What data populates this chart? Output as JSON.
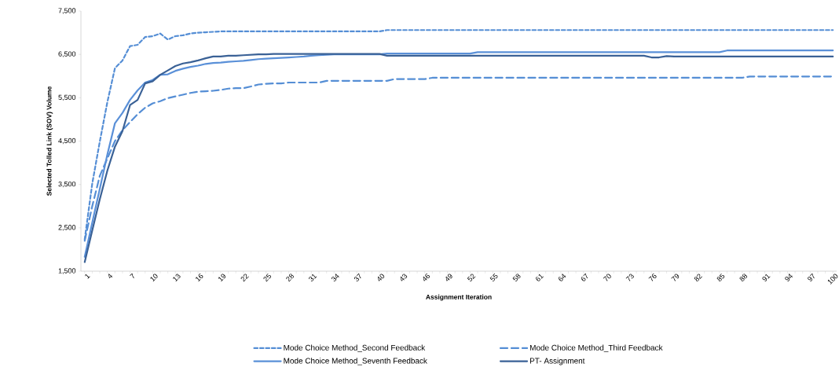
{
  "chart_data": {
    "type": "line",
    "xlabel": "Assignment Iteration",
    "ylabel": "Selected Tolled Link (SOV) Volume",
    "categories": [
      "1",
      null,
      null,
      "4",
      null,
      null,
      "7",
      null,
      null,
      "10",
      null,
      null,
      "13",
      null,
      null,
      "16",
      null,
      null,
      "19",
      null,
      null,
      "22",
      null,
      null,
      "25",
      null,
      null,
      "28",
      null,
      null,
      "31",
      null,
      null,
      "34",
      null,
      null,
      "37",
      null,
      null,
      "40",
      null,
      null,
      "43",
      null,
      null,
      "46",
      null,
      null,
      "49",
      null,
      null,
      "52",
      null,
      null,
      "55",
      null,
      null,
      "58",
      null,
      null,
      "61",
      null,
      null,
      "64",
      null,
      null,
      "67",
      null,
      null,
      "70",
      null,
      null,
      "73",
      null,
      null,
      "76",
      null,
      null,
      "79",
      null,
      null,
      "82",
      null,
      null,
      "85",
      null,
      null,
      "88",
      null,
      null,
      "91",
      null,
      null,
      "94",
      null,
      null,
      "97",
      null,
      null,
      "100"
    ],
    "ylim": [
      1500,
      7500
    ],
    "yticks": [
      {
        "value": 1500,
        "label": "1,500"
      },
      {
        "value": 2500,
        "label": "2,500"
      },
      {
        "value": 3500,
        "label": "3,500"
      },
      {
        "value": 4500,
        "label": "4,500"
      },
      {
        "value": 5500,
        "label": "5,500"
      },
      {
        "value": 6500,
        "label": "6,500"
      },
      {
        "value": 7500,
        "label": "7,500"
      }
    ],
    "legend": "bottom",
    "series": [
      {
        "name": "Mode Choice Method_Second Feedback",
        "color": "#558ed5",
        "line_style": "dotted",
        "values": [
          2230,
          3520,
          4490,
          5400,
          6180,
          6360,
          6690,
          6720,
          6900,
          6920,
          6980,
          6840,
          6920,
          6940,
          6980,
          7000,
          7010,
          7020,
          7030,
          7030,
          7030,
          7030,
          7030,
          7030,
          7030,
          7030,
          7030,
          7030,
          7030,
          7030,
          7030,
          7030,
          7030,
          7030,
          7030,
          7030,
          7030,
          7030,
          7030,
          7030,
          7060,
          7060,
          7060,
          7060,
          7060,
          7060,
          7060,
          7060,
          7060,
          7060,
          7060,
          7060,
          7060,
          7060,
          7060,
          7060,
          7060,
          7060,
          7060,
          7060,
          7060,
          7060,
          7060,
          7060,
          7060,
          7060,
          7060,
          7060,
          7060,
          7060,
          7060,
          7060,
          7060,
          7060,
          7060,
          7060,
          7060,
          7060,
          7060,
          7060,
          7060,
          7060,
          7060,
          7060,
          7060,
          7060,
          7060,
          7060,
          7060,
          7060,
          7060,
          7060,
          7060,
          7060,
          7060,
          7060,
          7060,
          7060,
          7060,
          7060
        ]
      },
      {
        "name": "Mode Choice Method_Third Feedback",
        "color": "#558ed5",
        "line_style": "dashed",
        "values": [
          2200,
          3000,
          3700,
          4100,
          4500,
          4750,
          4940,
          5120,
          5270,
          5370,
          5420,
          5490,
          5530,
          5570,
          5610,
          5640,
          5650,
          5660,
          5680,
          5710,
          5720,
          5720,
          5760,
          5805,
          5820,
          5830,
          5830,
          5850,
          5850,
          5850,
          5850,
          5850,
          5890,
          5890,
          5890,
          5890,
          5890,
          5890,
          5890,
          5890,
          5890,
          5930,
          5930,
          5930,
          5930,
          5930,
          5960,
          5960,
          5960,
          5960,
          5960,
          5960,
          5960,
          5960,
          5960,
          5960,
          5960,
          5960,
          5960,
          5960,
          5960,
          5960,
          5960,
          5960,
          5960,
          5960,
          5960,
          5960,
          5960,
          5960,
          5960,
          5960,
          5960,
          5960,
          5960,
          5960,
          5960,
          5960,
          5960,
          5960,
          5960,
          5960,
          5960,
          5960,
          5960,
          5960,
          5960,
          5960,
          5990,
          5990,
          5990,
          5990,
          5990,
          5990,
          5990,
          5990,
          5990,
          5990,
          5990,
          5990
        ]
      },
      {
        "name": "Mode Choice Method_Seventh Feedback",
        "color": "#5a90d8",
        "line_style": "solid",
        "values": [
          1830,
          2620,
          3400,
          4190,
          4910,
          5150,
          5450,
          5670,
          5850,
          5910,
          6030,
          6040,
          6120,
          6170,
          6210,
          6240,
          6280,
          6300,
          6310,
          6330,
          6340,
          6350,
          6370,
          6390,
          6400,
          6410,
          6420,
          6430,
          6440,
          6450,
          6470,
          6480,
          6490,
          6500,
          6500,
          6500,
          6500,
          6500,
          6500,
          6500,
          6520,
          6520,
          6520,
          6520,
          6520,
          6520,
          6520,
          6520,
          6520,
          6520,
          6520,
          6520,
          6550,
          6550,
          6550,
          6550,
          6550,
          6550,
          6550,
          6550,
          6550,
          6550,
          6550,
          6550,
          6550,
          6550,
          6550,
          6550,
          6550,
          6550,
          6550,
          6550,
          6550,
          6550,
          6550,
          6550,
          6550,
          6550,
          6550,
          6550,
          6550,
          6550,
          6550,
          6550,
          6550,
          6590,
          6590,
          6590,
          6590,
          6590,
          6590,
          6590,
          6590,
          6590,
          6590,
          6590,
          6590,
          6590,
          6590,
          6590
        ]
      },
      {
        "name": "PT- Assignment",
        "color": "#3a6196",
        "line_style": "solid",
        "values": [
          1710,
          2440,
          3160,
          3820,
          4370,
          4730,
          5330,
          5450,
          5830,
          5880,
          6030,
          6130,
          6230,
          6290,
          6320,
          6360,
          6410,
          6450,
          6450,
          6470,
          6470,
          6480,
          6490,
          6500,
          6500,
          6510,
          6510,
          6510,
          6510,
          6510,
          6510,
          6510,
          6510,
          6510,
          6510,
          6510,
          6510,
          6510,
          6510,
          6510,
          6470,
          6470,
          6470,
          6470,
          6470,
          6470,
          6470,
          6470,
          6470,
          6470,
          6470,
          6470,
          6470,
          6470,
          6470,
          6470,
          6470,
          6470,
          6470,
          6470,
          6470,
          6470,
          6470,
          6470,
          6470,
          6470,
          6470,
          6470,
          6470,
          6470,
          6470,
          6470,
          6470,
          6470,
          6470,
          6430,
          6430,
          6460,
          6450,
          6450,
          6450,
          6450,
          6450,
          6450,
          6450,
          6450,
          6450,
          6450,
          6450,
          6450,
          6450,
          6450,
          6450,
          6450,
          6450,
          6450,
          6450,
          6450,
          6450,
          6450
        ]
      }
    ]
  }
}
